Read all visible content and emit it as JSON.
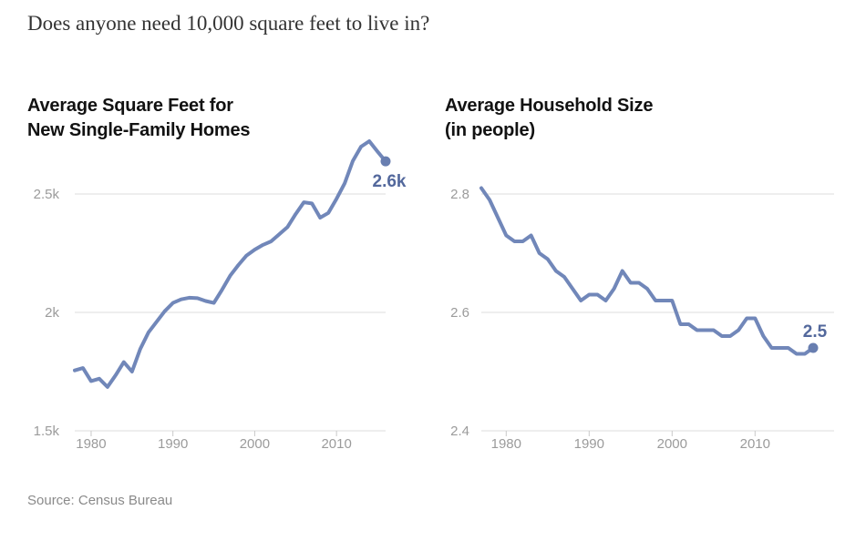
{
  "page_title": "Does anyone need 10,000 square feet to live in?",
  "source_label": "Source: Census Bureau",
  "colors": {
    "line": "#7187b9",
    "end_dot": "#687eb0",
    "annotation": "#53689c",
    "gridline": "#dcdcdc",
    "tick": "#c9c9c9",
    "axis_label": "#9b9b9b",
    "chart_title": "#121212",
    "page_title": "#333333",
    "source": "#8a8a8a",
    "background": "#ffffff"
  },
  "chart_data": [
    {
      "type": "line",
      "title_lines": [
        "Average Square Feet for",
        "New Single-Family Homes"
      ],
      "xlabel": "",
      "ylabel": "",
      "xlim": [
        1978,
        2016
      ],
      "ylim": [
        1500,
        2500
      ],
      "grid": true,
      "legend": "none",
      "x": [
        1978,
        1979,
        1980,
        1981,
        1982,
        1983,
        1984,
        1985,
        1986,
        1987,
        1988,
        1989,
        1990,
        1991,
        1992,
        1993,
        1994,
        1995,
        1996,
        1997,
        1998,
        1999,
        2000,
        2001,
        2002,
        2003,
        2004,
        2005,
        2006,
        2007,
        2008,
        2009,
        2010,
        2011,
        2012,
        2013,
        2014,
        2015,
        2016
      ],
      "values": [
        1755,
        1765,
        1710,
        1720,
        1685,
        1735,
        1790,
        1750,
        1845,
        1915,
        1960,
        2005,
        2040,
        2055,
        2062,
        2060,
        2048,
        2040,
        2095,
        2155,
        2200,
        2240,
        2265,
        2285,
        2300,
        2330,
        2360,
        2415,
        2465,
        2460,
        2400,
        2420,
        2480,
        2545,
        2640,
        2700,
        2723,
        2680,
        2638
      ],
      "x_ticks": [
        {
          "value": 1980,
          "label": "1980"
        },
        {
          "value": 1990,
          "label": "1990"
        },
        {
          "value": 2000,
          "label": "2000"
        },
        {
          "value": 2010,
          "label": "2010"
        }
      ],
      "y_gridlines": [
        {
          "value": 2500,
          "label": "2.5k"
        },
        {
          "value": 2000,
          "label": "2k"
        },
        {
          "value": 1500,
          "label": "1.5k"
        }
      ],
      "end_point_label": "2.6k"
    },
    {
      "type": "line",
      "title_lines": [
        "Average Household Size",
        "(in people)"
      ],
      "xlabel": "",
      "ylabel": "",
      "xlim": [
        1977,
        2017
      ],
      "ylim": [
        2.4,
        2.8
      ],
      "grid": true,
      "legend": "none",
      "x": [
        1977,
        1978,
        1979,
        1980,
        1981,
        1982,
        1983,
        1984,
        1985,
        1986,
        1987,
        1988,
        1989,
        1990,
        1991,
        1992,
        1993,
        1994,
        1995,
        1996,
        1997,
        1998,
        1999,
        2000,
        2001,
        2002,
        2003,
        2004,
        2005,
        2006,
        2007,
        2008,
        2009,
        2010,
        2011,
        2012,
        2013,
        2014,
        2015,
        2016,
        2017
      ],
      "values": [
        2.81,
        2.79,
        2.76,
        2.73,
        2.72,
        2.72,
        2.73,
        2.7,
        2.69,
        2.67,
        2.66,
        2.64,
        2.62,
        2.63,
        2.63,
        2.62,
        2.64,
        2.67,
        2.65,
        2.65,
        2.64,
        2.62,
        2.62,
        2.62,
        2.58,
        2.58,
        2.57,
        2.57,
        2.57,
        2.56,
        2.56,
        2.57,
        2.59,
        2.59,
        2.56,
        2.54,
        2.54,
        2.54,
        2.53,
        2.53,
        2.54
      ],
      "x_ticks": [
        {
          "value": 1980,
          "label": "1980"
        },
        {
          "value": 1990,
          "label": "1990"
        },
        {
          "value": 2000,
          "label": "2000"
        },
        {
          "value": 2010,
          "label": "2010"
        }
      ],
      "y_gridlines": [
        {
          "value": 2.8,
          "label": "2.8"
        },
        {
          "value": 2.6,
          "label": "2.6"
        },
        {
          "value": 2.4,
          "label": "2.4"
        }
      ],
      "end_point_label": "2.5"
    }
  ]
}
